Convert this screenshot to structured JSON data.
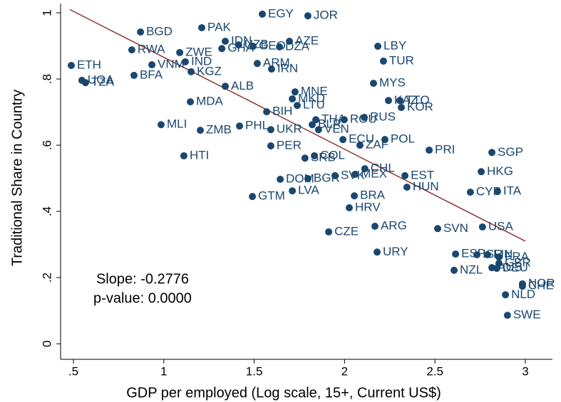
{
  "chart_data": {
    "type": "scatter",
    "x_label": "GDP per employed (Log scale, 15+, Current US$)",
    "y_label": "Traditional Share in Country",
    "annotations": [
      "Slope: -0.2776",
      "p-value: 0.0000"
    ],
    "color": "#1a476f",
    "fit_color": "#90353b",
    "xlim": [
      0.429,
      3.15
    ],
    "ylim": [
      -0.047,
      1.028
    ],
    "xticks": [
      {
        "value": 0.5,
        "label": ".5"
      },
      1,
      1.5,
      2,
      2.5,
      3
    ],
    "yticks": [
      0,
      {
        "value": 0.2,
        "label": ".2"
      },
      {
        "value": 0.4,
        "label": ".4"
      },
      {
        "value": 0.6,
        "label": ".6"
      },
      {
        "value": 0.8,
        "label": ".8"
      },
      1
    ],
    "point_labels": [
      "ETH",
      "UGA",
      "TZA",
      "BGD",
      "RWA",
      "VNM",
      "BFA",
      "ZWE",
      "IND",
      "KGZ",
      "PAK",
      "IDN",
      "UZB",
      "GHA",
      "EGY",
      "JOR",
      "AZE",
      "GEO",
      "DZA",
      "ARM",
      "IRN",
      "ALB",
      "MDA",
      "LBY",
      "TUR",
      "MYS",
      "KAZ",
      "TTO",
      "KOR",
      "MNE",
      "MKD",
      "LTU",
      "BIH",
      "THA",
      "ROU",
      "BLR",
      "RUS",
      "VEN",
      "UKR",
      "PHL",
      "ZMB",
      "MLI",
      "ECU",
      "ZAF",
      "POL",
      "PRI",
      "SGP",
      "PER",
      "HTI",
      "SRB",
      "COL",
      "CHL",
      "MEX",
      "SVK",
      "BGR",
      "DOM",
      "EST",
      "HUN",
      "HKG",
      "CYP",
      "ITA",
      "GTM",
      "LVA",
      "BRA",
      "HRV",
      "ARG",
      "SVN",
      "USA",
      "CZE",
      "URY",
      "ESP",
      "ISR",
      "FIN",
      "FRA",
      "GBR",
      "AUS",
      "DEU",
      "NZL",
      "NOR",
      "CHE",
      "NLD",
      "SWE"
    ],
    "x": [
      0.488,
      0.547,
      0.567,
      0.871,
      0.823,
      0.934,
      0.835,
      1.088,
      1.119,
      1.151,
      1.21,
      1.34,
      1.414,
      1.321,
      1.545,
      1.797,
      1.695,
      1.494,
      1.64,
      1.517,
      1.596,
      1.34,
      1.147,
      2.184,
      2.215,
      2.16,
      2.243,
      2.306,
      2.314,
      1.726,
      1.711,
      1.738,
      1.569,
      1.841,
      1.998,
      1.821,
      2.109,
      1.856,
      1.592,
      1.419,
      1.202,
      0.985,
      1.991,
      2.085,
      2.223,
      2.468,
      2.815,
      1.592,
      1.111,
      1.781,
      1.833,
      2.112,
      2.058,
      1.947,
      1.797,
      1.644,
      2.334,
      2.345,
      2.756,
      2.696,
      2.846,
      1.49,
      1.711,
      2.054,
      2.026,
      2.168,
      2.515,
      2.763,
      1.912,
      2.18,
      2.614,
      2.732,
      2.791,
      2.854,
      2.854,
      2.815,
      2.842,
      2.606,
      2.984,
      2.984,
      2.89,
      2.901
    ],
    "y": [
      0.841,
      0.796,
      0.789,
      0.942,
      0.888,
      0.843,
      0.811,
      0.88,
      0.852,
      0.822,
      0.955,
      0.914,
      0.903,
      0.892,
      0.996,
      0.991,
      0.914,
      0.899,
      0.897,
      0.847,
      0.83,
      0.778,
      0.731,
      0.899,
      0.854,
      0.787,
      0.735,
      0.735,
      0.714,
      0.761,
      0.74,
      0.72,
      0.701,
      0.677,
      0.677,
      0.662,
      0.684,
      0.647,
      0.647,
      0.658,
      0.645,
      0.662,
      0.617,
      0.6,
      0.617,
      0.585,
      0.578,
      0.598,
      0.568,
      0.561,
      0.568,
      0.529,
      0.512,
      0.508,
      0.499,
      0.497,
      0.508,
      0.473,
      0.52,
      0.458,
      0.46,
      0.445,
      0.462,
      0.447,
      0.411,
      0.355,
      0.348,
      0.353,
      0.338,
      0.277,
      0.271,
      0.269,
      0.269,
      0.262,
      0.243,
      0.23,
      0.228,
      0.222,
      0.181,
      0.174,
      0.148,
      0.086
    ],
    "fit_line": {
      "x": [
        0.48,
        3.0
      ],
      "y": [
        1.01,
        0.31
      ]
    }
  }
}
